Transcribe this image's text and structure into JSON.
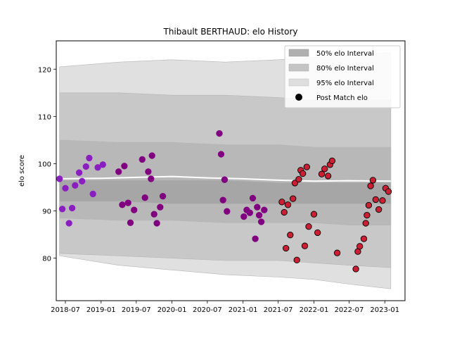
{
  "chart_data": {
    "type": "scatter",
    "title": "Thibault BERTHAUD: elo History",
    "xlabel": "",
    "ylabel": "elo score",
    "xlim": [
      "2018-05-15",
      "2023-04-15"
    ],
    "ylim": [
      71,
      126
    ],
    "x_ticks": [
      "2018-07-01",
      "2019-01-01",
      "2019-07-01",
      "2020-01-01",
      "2020-07-01",
      "2021-01-01",
      "2021-07-01",
      "2022-01-01",
      "2022-07-01",
      "2023-01-01"
    ],
    "x_tick_labels": [
      "2018-07",
      "2019-01",
      "2019-07",
      "2020-01",
      "2020-07",
      "2021-01",
      "2021-07",
      "2022-01",
      "2022-07",
      "2023-01"
    ],
    "y_ticks": [
      80,
      90,
      100,
      110,
      120
    ],
    "y_tick_labels": [
      "80",
      "90",
      "100",
      "110",
      "120"
    ],
    "grid": false,
    "legend_position": "top-right",
    "legend": [
      {
        "label": "50% elo Interval",
        "kind": "patch",
        "color": "#b0b0b0"
      },
      {
        "label": "80% elo Interval",
        "kind": "patch",
        "color": "#c4c4c4"
      },
      {
        "label": "95% elo Interval",
        "kind": "patch",
        "color": "#dedede"
      },
      {
        "label": "Post Match elo",
        "kind": "marker",
        "color": "#000000"
      }
    ],
    "bands": [
      {
        "name": "95% elo Interval",
        "color": "#e0e0e0",
        "x": [
          "2018-06-01",
          "2019-04-01",
          "2020-01-01",
          "2020-10-01",
          "2021-07-01",
          "2022-01-01",
          "2022-07-01",
          "2023-02-01"
        ],
        "lower": [
          80.5,
          78.5,
          77.5,
          76.5,
          76,
          75.5,
          74.5,
          73.5
        ],
        "upper": [
          120.5,
          121.5,
          122,
          121.5,
          122,
          122.5,
          123,
          123.5
        ]
      },
      {
        "name": "80% elo Interval",
        "color": "#c8c8c8",
        "x": [
          "2018-06-01",
          "2019-04-01",
          "2020-01-01",
          "2020-10-01",
          "2021-07-01",
          "2022-01-01",
          "2022-07-01",
          "2023-02-01"
        ],
        "lower": [
          81,
          80.5,
          80,
          79.5,
          79.5,
          79,
          78.5,
          78
        ],
        "upper": [
          115,
          115,
          114.5,
          114.5,
          114,
          113.5,
          113.5,
          113.5
        ]
      },
      {
        "name": "50% elo Interval",
        "color": "#b8b8b8",
        "x": [
          "2018-06-01",
          "2019-04-01",
          "2020-01-01",
          "2020-10-01",
          "2021-07-01",
          "2022-01-01",
          "2022-07-01",
          "2023-02-01"
        ],
        "lower": [
          88.5,
          88,
          88,
          87.5,
          87.5,
          87.5,
          87,
          87
        ],
        "upper": [
          105,
          104.5,
          104.5,
          104,
          104,
          103.5,
          103.5,
          103.5
        ]
      },
      {
        "name": "inner",
        "color": "#a6a6a6",
        "x": [
          "2018-06-01",
          "2019-04-01",
          "2020-01-01",
          "2020-10-01",
          "2021-07-01",
          "2022-01-01",
          "2022-07-01",
          "2023-02-01"
        ],
        "lower": [
          92,
          92,
          91.5,
          91.5,
          91.5,
          91.5,
          91.5,
          91.5
        ],
        "upper": [
          96.5,
          96.5,
          96.5,
          96.5,
          96,
          96,
          96,
          96
        ]
      }
    ],
    "median_line": {
      "color": "#ffffff",
      "x": [
        "2018-06-01",
        "2019-01-01",
        "2019-07-01",
        "2020-01-01",
        "2020-07-01",
        "2021-01-01",
        "2021-07-01",
        "2022-01-01",
        "2022-07-01",
        "2023-02-01"
      ],
      "y": [
        96.8,
        96.9,
        97.1,
        97.3,
        97.0,
        96.8,
        96.5,
        96.3,
        96.4,
        96.3
      ]
    },
    "series": [
      {
        "marker_color": "#8a1fc0",
        "edge_color": "#8a1fc0",
        "points": [
          [
            "2018-06-01",
            96.8
          ],
          [
            "2018-06-15",
            90.4
          ],
          [
            "2018-07-01",
            94.8
          ],
          [
            "2018-07-20",
            87.4
          ],
          [
            "2018-08-05",
            90.6
          ],
          [
            "2018-08-20",
            95.4
          ],
          [
            "2018-09-10",
            98.1
          ],
          [
            "2018-09-25",
            96.3
          ],
          [
            "2018-10-15",
            99.4
          ],
          [
            "2018-11-01",
            101.2
          ],
          [
            "2018-11-20",
            93.6
          ],
          [
            "2018-12-15",
            99.2
          ],
          [
            "2019-01-10",
            99.8
          ]
        ]
      },
      {
        "marker_color": "#800080",
        "edge_color": "#800080",
        "points": [
          [
            "2019-04-01",
            98.3
          ],
          [
            "2019-04-20",
            91.3
          ],
          [
            "2019-05-01",
            99.5
          ],
          [
            "2019-05-20",
            91.7
          ],
          [
            "2019-06-01",
            87.5
          ],
          [
            "2019-06-20",
            90.2
          ],
          [
            "2019-08-01",
            100.9
          ],
          [
            "2019-08-15",
            92.8
          ],
          [
            "2019-09-01",
            98.3
          ],
          [
            "2019-09-20",
            101.7
          ],
          [
            "2019-10-01",
            89.3
          ],
          [
            "2019-10-15",
            87.4
          ],
          [
            "2019-11-01",
            90.8
          ],
          [
            "2019-11-15",
            93.1
          ],
          [
            "2019-09-15",
            96.8
          ],
          [
            "2020-09-01",
            106.4
          ],
          [
            "2020-09-10",
            102.0
          ],
          [
            "2020-09-20",
            92.3
          ],
          [
            "2020-10-10",
            89.9
          ],
          [
            "2020-09-28",
            96.6
          ],
          [
            "2021-01-05",
            88.8
          ],
          [
            "2021-01-20",
            90.2
          ],
          [
            "2021-02-05",
            89.6
          ],
          [
            "2021-02-20",
            92.7
          ],
          [
            "2021-03-05",
            84.1
          ],
          [
            "2021-03-15",
            90.8
          ],
          [
            "2021-03-25",
            89.1
          ],
          [
            "2021-04-05",
            87.7
          ],
          [
            "2021-04-20",
            90.2
          ]
        ]
      },
      {
        "marker_color": "#cc1f33",
        "edge_color": "#000000",
        "points": [
          [
            "2021-07-20",
            91.9
          ],
          [
            "2021-08-01",
            89.7
          ],
          [
            "2021-08-10",
            82.1
          ],
          [
            "2021-08-20",
            91.3
          ],
          [
            "2021-09-01",
            84.9
          ],
          [
            "2021-09-15",
            92.6
          ],
          [
            "2021-09-25",
            95.9
          ],
          [
            "2021-10-05",
            79.6
          ],
          [
            "2021-10-15",
            96.7
          ],
          [
            "2021-10-25",
            98.6
          ],
          [
            "2021-11-05",
            97.9
          ],
          [
            "2021-11-15",
            82.6
          ],
          [
            "2021-11-25",
            99.3
          ],
          [
            "2021-12-05",
            86.7
          ],
          [
            "2022-01-01",
            89.3
          ],
          [
            "2022-01-20",
            85.4
          ],
          [
            "2022-02-10",
            97.8
          ],
          [
            "2022-02-25",
            98.9
          ],
          [
            "2022-03-15",
            97.4
          ],
          [
            "2022-03-25",
            99.8
          ],
          [
            "2022-04-05",
            100.6
          ],
          [
            "2022-05-01",
            81.1
          ],
          [
            "2022-08-05",
            77.7
          ],
          [
            "2022-08-15",
            81.4
          ],
          [
            "2022-08-25",
            82.5
          ],
          [
            "2022-09-15",
            84.1
          ],
          [
            "2022-09-25",
            87.4
          ],
          [
            "2022-10-01",
            89.1
          ],
          [
            "2022-10-10",
            91.2
          ],
          [
            "2022-10-20",
            95.3
          ],
          [
            "2022-11-01",
            96.5
          ],
          [
            "2022-11-15",
            92.4
          ],
          [
            "2022-12-01",
            90.3
          ],
          [
            "2022-12-20",
            92.2
          ],
          [
            "2023-01-05",
            94.8
          ],
          [
            "2023-01-20",
            94.1
          ]
        ]
      }
    ]
  }
}
